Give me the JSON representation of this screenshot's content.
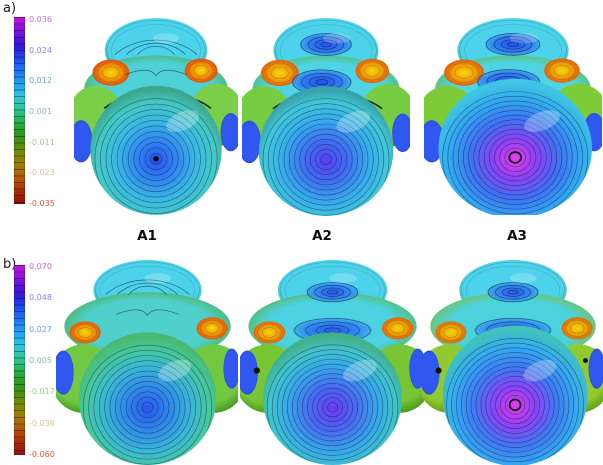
{
  "figure": {
    "background": "#ffffff"
  },
  "chart_data": {
    "type": "3d-surface-contour",
    "description": "Two rows of molecular isosurfaces colored by a property value with contour lines; each row has its own rainbow colorbar.",
    "panels": [
      {
        "corner_label": "a)",
        "colorbar": {
          "max": 0.036,
          "min": -0.035,
          "tick_labels": [
            "0.036",
            "0.024",
            "0.012",
            "0.001",
            "-0.011",
            "-0.023",
            "-0.035"
          ],
          "tick_colors": [
            "#d466dc",
            "#8482ec",
            "#64a8e2",
            "#90bcaa",
            "#a0cc90",
            "#dcc49c",
            "#e05536"
          ],
          "gradient_stops": [
            "#c814e0",
            "#9612da",
            "#6012d6",
            "#3318e0",
            "#1f41ee",
            "#1f66f4",
            "#2288f2",
            "#27a8ee",
            "#2fc4da",
            "#2fc8a8",
            "#2cbd72",
            "#28a838",
            "#32971a",
            "#52900e",
            "#7c8a08",
            "#9c7c06",
            "#ae6208",
            "#b24309",
            "#a52408",
            "#8f1206"
          ]
        },
        "surfaces": [
          {
            "label": "A1",
            "center_glyph": "dot",
            "blue_spots": false,
            "side_dots": false,
            "big": false,
            "cap_arc": false,
            "rings": 11,
            "colors": {
              "top": "#4cd2ea",
              "topEdge": "#3fa98c",
              "band": "#4fd0d6",
              "bandEdge": "#46a83e",
              "orangeCore": "#f4e00c",
              "orangeMid": "#f29208",
              "orangeEdge": "#e25206",
              "side": "#7bce47",
              "sideDark": "#3e9220",
              "blue": "#3058f0",
              "blueDark": "#1c2fc0",
              "spot": "#2f80f0",
              "spotCore": "#2450ee",
              "sphereStops": [
                [
                  "0%",
                  "#2b52f0"
                ],
                [
                  "25%",
                  "#2f80f2"
                ],
                [
                  "55%",
                  "#3ab8e4"
                ],
                [
                  "82%",
                  "#44c9c2"
                ],
                [
                  "100%",
                  "#3da68e"
                ]
              ]
            }
          },
          {
            "label": "A2",
            "center_glyph": "none",
            "blue_spots": true,
            "side_dots": false,
            "big": false,
            "cap_arc": false,
            "rings": 12,
            "colors": {
              "top": "#4cd2ea",
              "topEdge": "#44b09a",
              "band": "#4fd4e4",
              "bandEdge": "#52b232",
              "orangeCore": "#f2d80c",
              "orangeMid": "#f0a008",
              "orangeEdge": "#e26206",
              "side": "#76cc42",
              "sideDark": "#3e9220",
              "blue": "#3058f0",
              "blueDark": "#1c2fc0",
              "spot": "#2f80f0",
              "spotCore": "#2450ee",
              "sphereStops": [
                [
                  "0%",
                  "#5640f2"
                ],
                [
                  "28%",
                  "#3f6cf2"
                ],
                [
                  "58%",
                  "#36acec"
                ],
                [
                  "84%",
                  "#41c8d8"
                ],
                [
                  "100%",
                  "#38a2aa"
                ]
              ]
            }
          },
          {
            "label": "A3",
            "center_glyph": "ring",
            "blue_spots": true,
            "side_dots": false,
            "big": true,
            "cap_arc": false,
            "rings": 14,
            "colors": {
              "top": "#4cd2ea",
              "topEdge": "#44b09a",
              "band": "#4fd4e4",
              "bandEdge": "#66b426",
              "orangeCore": "#f2d80c",
              "orangeMid": "#f0a008",
              "orangeEdge": "#e26206",
              "side": "#7ecb3a",
              "sideDark": "#459418",
              "blue": "#3058f0",
              "blueDark": "#1c2fc0",
              "spot": "#2f80f0",
              "spotCore": "#2450ee",
              "sphereStops": [
                [
                  "0%",
                  "#ec3cec"
                ],
                [
                  "26%",
                  "#8a42f6"
                ],
                [
                  "52%",
                  "#3f72f4"
                ],
                [
                  "76%",
                  "#32a6f2"
                ],
                [
                  "100%",
                  "#3fc6e2"
                ]
              ]
            }
          }
        ]
      },
      {
        "corner_label": "b)",
        "colorbar": {
          "max": 0.07,
          "min": -0.06,
          "tick_labels": [
            "0.070",
            "0.048",
            "0.027",
            "0.005",
            "-0.017",
            "-0.038",
            "-0.060"
          ],
          "tick_colors": [
            "#d466dc",
            "#8482ec",
            "#64a8e2",
            "#90bcaa",
            "#a0cc90",
            "#dcc49c",
            "#e05536"
          ],
          "gradient_stops": [
            "#c814e0",
            "#9612da",
            "#6012d6",
            "#3318e0",
            "#1f41ee",
            "#1f66f4",
            "#2288f2",
            "#27a8ee",
            "#2fc4da",
            "#2fc8a8",
            "#2cbd72",
            "#28a838",
            "#32971a",
            "#52900e",
            "#7c8a08",
            "#9c7c06",
            "#ae6208",
            "#b24309",
            "#a52408",
            "#8f1206"
          ]
        },
        "surfaces": [
          {
            "label": "",
            "center_glyph": "none",
            "blue_spots": false,
            "side_dots": false,
            "big": false,
            "cap_arc": true,
            "rings": 12,
            "colors": {
              "top": "#4cd2ea",
              "topEdge": "#42ae8e",
              "band": "#4fd0cc",
              "bandEdge": "#4aa836",
              "orangeCore": "#f4dc0c",
              "orangeMid": "#f09608",
              "orangeEdge": "#e25c06",
              "side": "#72c841",
              "sideDark": "#3f9320",
              "blue": "#3058f0",
              "blueDark": "#1c2fc0",
              "spot": "#36a2f0",
              "spotCore": "#2a6cee",
              "sphereStops": [
                [
                  "0%",
                  "#2c55ee"
                ],
                [
                  "28%",
                  "#2f86ea"
                ],
                [
                  "58%",
                  "#3ab6d6"
                ],
                [
                  "82%",
                  "#47c99e"
                ],
                [
                  "100%",
                  "#4aba72"
                ]
              ]
            }
          },
          {
            "label": "",
            "center_glyph": "none",
            "blue_spots": true,
            "side_dots": true,
            "big": false,
            "cap_arc": false,
            "rings": 13,
            "colors": {
              "top": "#4cd2ea",
              "topEdge": "#44b096",
              "band": "#4cd2e0",
              "bandEdge": "#58b02a",
              "orangeCore": "#f2d80c",
              "orangeMid": "#f0a008",
              "orangeEdge": "#e26606",
              "side": "#78c636",
              "sideDark": "#459418",
              "blue": "#3058f0",
              "blueDark": "#1c2fc0",
              "spot": "#318cf0",
              "spotCore": "#2858ee",
              "sphereStops": [
                [
                  "0%",
                  "#6c3cf4"
                ],
                [
                  "28%",
                  "#4a66f2"
                ],
                [
                  "58%",
                  "#36a6ea"
                ],
                [
                  "82%",
                  "#41c4cc"
                ],
                [
                  "100%",
                  "#42b089"
                ]
              ]
            }
          },
          {
            "label": "",
            "center_glyph": "ring",
            "blue_spots": true,
            "side_dots": true,
            "big": true,
            "cap_arc": false,
            "rings": 14,
            "colors": {
              "top": "#4cd2ea",
              "topEdge": "#5cb454",
              "band": "#4cd2dc",
              "bandEdge": "#8cba1c",
              "orangeCore": "#f0d80c",
              "orangeMid": "#eca408",
              "orangeEdge": "#dc6c06",
              "side": "#92c92e",
              "sideDark": "#5e9a14",
              "blue": "#3058f0",
              "blueDark": "#1c2fc0",
              "spot": "#318cf0",
              "spotCore": "#2858ee",
              "sphereStops": [
                [
                  "0%",
                  "#e638ec"
                ],
                [
                  "26%",
                  "#8a44f6"
                ],
                [
                  "52%",
                  "#3f7af4"
                ],
                [
                  "78%",
                  "#34acf0"
                ],
                [
                  "100%",
                  "#41c2bc"
                ]
              ]
            }
          }
        ]
      }
    ]
  }
}
